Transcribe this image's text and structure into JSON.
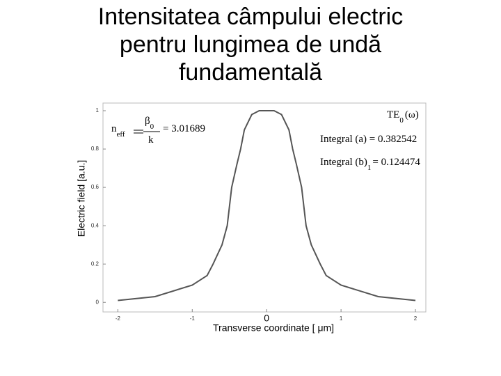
{
  "chart_data": {
    "type": "line",
    "title": "Intensitatea câmpului electric pentru lungimea de undă fundamentală",
    "x_label": "Transverse coordinate [ μm]",
    "y_label": "Electric field [a.u.]",
    "annotations": [
      {
        "text": "n",
        "sub": "eff"
      },
      {
        "text": "β",
        "sub": "0"
      },
      {
        "text": "k"
      },
      {
        "text": "= 3.01689"
      },
      {
        "text": "TE",
        "sub": "0",
        "after": "(ω)"
      },
      {
        "text": "Integral (a) = 0.382542"
      },
      {
        "text": "Integral (b)",
        "sub": "1",
        "after": "= 0.124474"
      }
    ],
    "x": [
      -2,
      -1.5,
      -1,
      -0.8,
      -0.72,
      -0.6,
      -0.53,
      -0.47,
      -0.4,
      -0.35,
      -0.3,
      -0.2,
      -0.1,
      0,
      0.1,
      0.2,
      0.3,
      0.35,
      0.4,
      0.47,
      0.53,
      0.6,
      0.72,
      0.8,
      1,
      1.5,
      2
    ],
    "series": [
      {
        "color": "#555555",
        "values": [
          0.01,
          0.03,
          0.09,
          0.14,
          0.2,
          0.3,
          0.4,
          0.6,
          0.72,
          0.8,
          0.9,
          0.98,
          1,
          1,
          1,
          0.98,
          0.9,
          0.8,
          0.72,
          0.6,
          0.4,
          0.3,
          0.2,
          0.14,
          0.09,
          0.03,
          0.01
        ]
      }
    ],
    "xlim": [
      -2.2,
      2.14
    ],
    "ylim": [
      -0.05,
      1.04
    ],
    "xticks": [
      -2,
      -1,
      0,
      1,
      2
    ],
    "yticks": [
      0,
      0.2,
      0.4,
      0.6,
      0.8,
      1
    ]
  }
}
